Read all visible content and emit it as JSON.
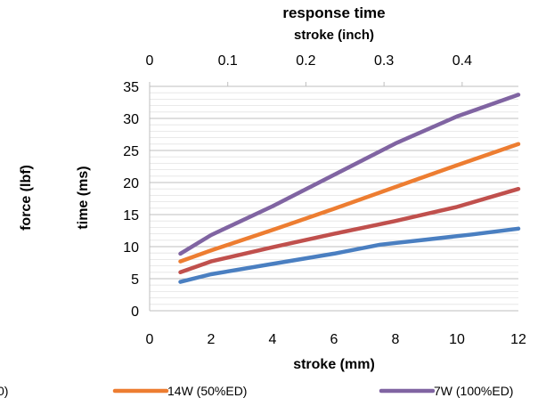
{
  "chart_data": {
    "type": "line",
    "title": "response time",
    "x2label": "stroke (inch)",
    "x2ticks": [
      "0",
      "0.1",
      "0.2",
      "0.3",
      "0.4"
    ],
    "x2tick_values": [
      0,
      0.1,
      0.2,
      0.3,
      0.4
    ],
    "x2lim": [
      0,
      0.472
    ],
    "xlabel": "stroke (mm)",
    "xticks": [
      "0",
      "2",
      "4",
      "6",
      "8",
      "10",
      "12"
    ],
    "xtick_values": [
      0,
      2,
      4,
      6,
      8,
      10,
      12
    ],
    "xlim": [
      0,
      12
    ],
    "ylabel": "time (ms)",
    "yticks": [
      "0",
      "5",
      "10",
      "15",
      "20",
      "25",
      "30",
      "35"
    ],
    "ytick_values": [
      0,
      5,
      10,
      15,
      20,
      25,
      30,
      35
    ],
    "ylim": [
      0,
      35
    ],
    "y2label": "force (lbf)",
    "grid": true,
    "legend_position": "bottom",
    "series": [
      {
        "name": "",
        "color": "#4a7fc1",
        "x": [
          1,
          2,
          4,
          6,
          7.5,
          9,
          10.5,
          12
        ],
        "y": [
          4.5,
          5.7,
          7.3,
          8.9,
          10.3,
          11.1,
          11.9,
          12.8
        ]
      },
      {
        "name": "",
        "color": "#c0504d",
        "x": [
          1,
          2,
          4,
          6,
          8,
          10,
          12
        ],
        "y": [
          6.0,
          7.7,
          9.9,
          12.0,
          14.0,
          16.2,
          19.0
        ]
      },
      {
        "name": "14W (50%ED)",
        "color": "#ed7d31",
        "x": [
          1,
          2,
          4,
          6,
          8,
          10,
          12
        ],
        "y": [
          7.7,
          9.4,
          12.6,
          15.9,
          19.3,
          22.7,
          26.0
        ]
      },
      {
        "name": "7W (100%ED)",
        "color": "#8064a2",
        "x": [
          1,
          2,
          4,
          6,
          8,
          10,
          12
        ],
        "y": [
          8.9,
          11.8,
          16.3,
          21.2,
          26.1,
          30.3,
          33.7
        ]
      }
    ],
    "legend_partial": [
      "0)"
    ]
  }
}
